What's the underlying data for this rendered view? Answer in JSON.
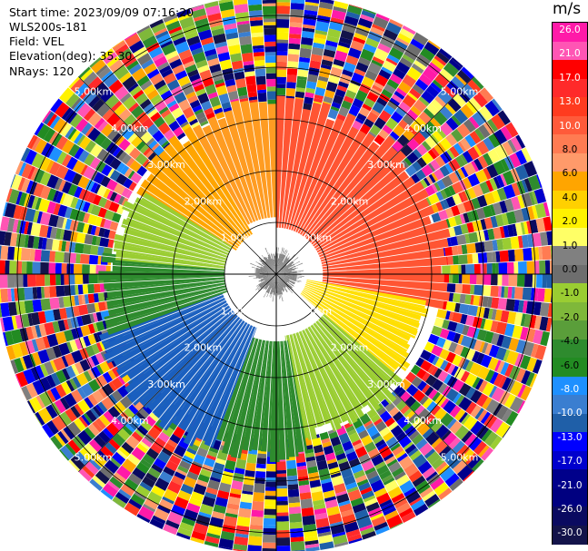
{
  "header": {
    "start_time": "Start time: 2023/09/09 07:16:20",
    "site": "WLS200s-181",
    "field": "Field: VEL",
    "elevation": "Elevation(deg): 35.30",
    "nrays": "NRays: 120"
  },
  "chart_data": {
    "type": "heatmap",
    "projection": "polar PPI",
    "field": "VEL",
    "units": "m/s",
    "range_rings_km": [
      1,
      2,
      3,
      4,
      5
    ],
    "ring_labels": [
      "1.00km",
      "2.00km",
      "3.00km",
      "4.00km",
      "5.00km"
    ],
    "max_range_km": 5.4,
    "colorbar": {
      "title": "m/s",
      "ticks": [
        "26.0",
        "21.0",
        "17.0",
        "13.0",
        "10.0",
        "8.0",
        "6.0",
        "4.0",
        "2.0",
        "1.0",
        "0.0",
        "-1.0",
        "-2.0",
        "-4.0",
        "-6.0",
        "-8.0",
        "-10.0",
        "-13.0",
        "-17.0",
        "-21.0",
        "-26.0",
        "-30.0"
      ],
      "colors": [
        "#ff1aa8",
        "#ff55b4",
        "#ff0000",
        "#ff2a2a",
        "#ff3b1f",
        "#ff5a3a",
        "#ff7b52",
        "#ff9a6a",
        "#ffa500",
        "#ffd000",
        "#fff200",
        "#ffff66",
        "#808080",
        "#6e6e6e",
        "#9acd32",
        "#7fb83a",
        "#5a9e3a",
        "#2e8b2e",
        "#228b22",
        "#1e90ff",
        "#3a7ed0",
        "#1f5fa8",
        "#0000ff",
        "#0000cd",
        "#00008b",
        "#000080",
        "#0a0a60",
        "#13134a"
      ]
    },
    "sectors": [
      {
        "azimuth_deg": [
          300,
          330
        ],
        "range_km": [
          0.9,
          3.2
        ],
        "value_ms": 4.0
      },
      {
        "azimuth_deg": [
          330,
          360
        ],
        "range_km": [
          1.1,
          3.3
        ],
        "value_ms": 6.0
      },
      {
        "azimuth_deg": [
          0,
          100
        ],
        "range_km": [
          0.9,
          3.3
        ],
        "value_ms": 10.0
      },
      {
        "azimuth_deg": [
          100,
          130
        ],
        "range_km": [
          0.6,
          3.0
        ],
        "value_ms": 2.0
      },
      {
        "azimuth_deg": [
          130,
          170
        ],
        "range_km": [
          1.2,
          3.2
        ],
        "value_ms": -2.0
      },
      {
        "azimuth_deg": [
          170,
          200
        ],
        "range_km": [
          1.3,
          3.5
        ],
        "value_ms": -6.0
      },
      {
        "azimuth_deg": [
          200,
          250
        ],
        "range_km": [
          1.1,
          3.6
        ],
        "value_ms": -10.0
      },
      {
        "azimuth_deg": [
          250,
          275
        ],
        "range_km": [
          1.0,
          3.3
        ],
        "value_ms": -6.0
      },
      {
        "azimuth_deg": [
          275,
          300
        ],
        "range_km": [
          1.0,
          3.1
        ],
        "value_ms": -2.0
      },
      {
        "azimuth_deg": [
          0,
          360
        ],
        "range_km": [
          0.0,
          0.4
        ],
        "value_ms": 0.0
      }
    ],
    "noise_region_km": [
      3.2,
      5.4
    ],
    "grid": true
  }
}
